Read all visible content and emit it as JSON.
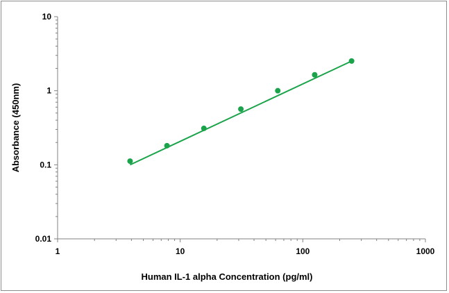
{
  "chart_data": {
    "type": "scatter",
    "title": "",
    "xlabel": "Human IL-1 alpha Concentration (pg/ml)",
    "ylabel": "Absorbance (450nm)",
    "xscale": "log",
    "yscale": "log",
    "xlim": [
      1,
      1000
    ],
    "ylim": [
      0.01,
      10
    ],
    "x_ticks": [
      "1",
      "10",
      "100",
      "1000"
    ],
    "y_ticks": [
      "0.01",
      "0.1",
      "1",
      "10"
    ],
    "grid": false,
    "legend": "none",
    "colors": {
      "series": "#1aa34a",
      "axis": "#808080"
    },
    "points": [
      {
        "x": 3.9,
        "y": 0.112
      },
      {
        "x": 7.8,
        "y": 0.181
      },
      {
        "x": 15.6,
        "y": 0.31
      },
      {
        "x": 31.25,
        "y": 0.565
      },
      {
        "x": 62.5,
        "y": 1.0
      },
      {
        "x": 125,
        "y": 1.64
      },
      {
        "x": 250,
        "y": 2.52
      }
    ],
    "fit": {
      "type": "power",
      "a": 0.0348,
      "b": 0.775,
      "x_range": [
        3.9,
        250
      ]
    }
  }
}
